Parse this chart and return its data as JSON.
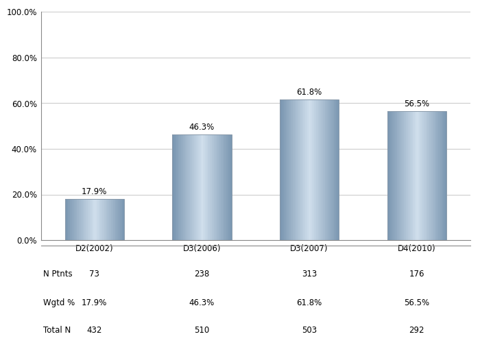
{
  "categories": [
    "D2(2002)",
    "D3(2006)",
    "D3(2007)",
    "D4(2010)"
  ],
  "values": [
    17.9,
    46.3,
    61.8,
    56.5
  ],
  "labels": [
    "17.9%",
    "46.3%",
    "61.8%",
    "56.5%"
  ],
  "n_ptnts": [
    73,
    238,
    313,
    176
  ],
  "wgtd_pct": [
    "17.9%",
    "46.3%",
    "61.8%",
    "56.5%"
  ],
  "total_n": [
    432,
    510,
    503,
    292
  ],
  "ylim": [
    0,
    100
  ],
  "yticks": [
    0,
    20,
    40,
    60,
    80,
    100
  ],
  "ytick_labels": [
    "0.0%",
    "20.0%",
    "40.0%",
    "60.0%",
    "80.0%",
    "100.0%"
  ],
  "bar_color_light": "#ccdaeb",
  "bar_color_mid": "#a8bdd4",
  "bar_color_dark": "#7a96b0",
  "background_color": "#ffffff",
  "grid_color": "#cccccc",
  "table_labels": [
    "N Ptnts",
    "Wgtd %",
    "Total N"
  ],
  "bar_width": 0.55,
  "label_fontsize": 8.5,
  "tick_fontsize": 8.5,
  "table_fontsize": 8.5
}
